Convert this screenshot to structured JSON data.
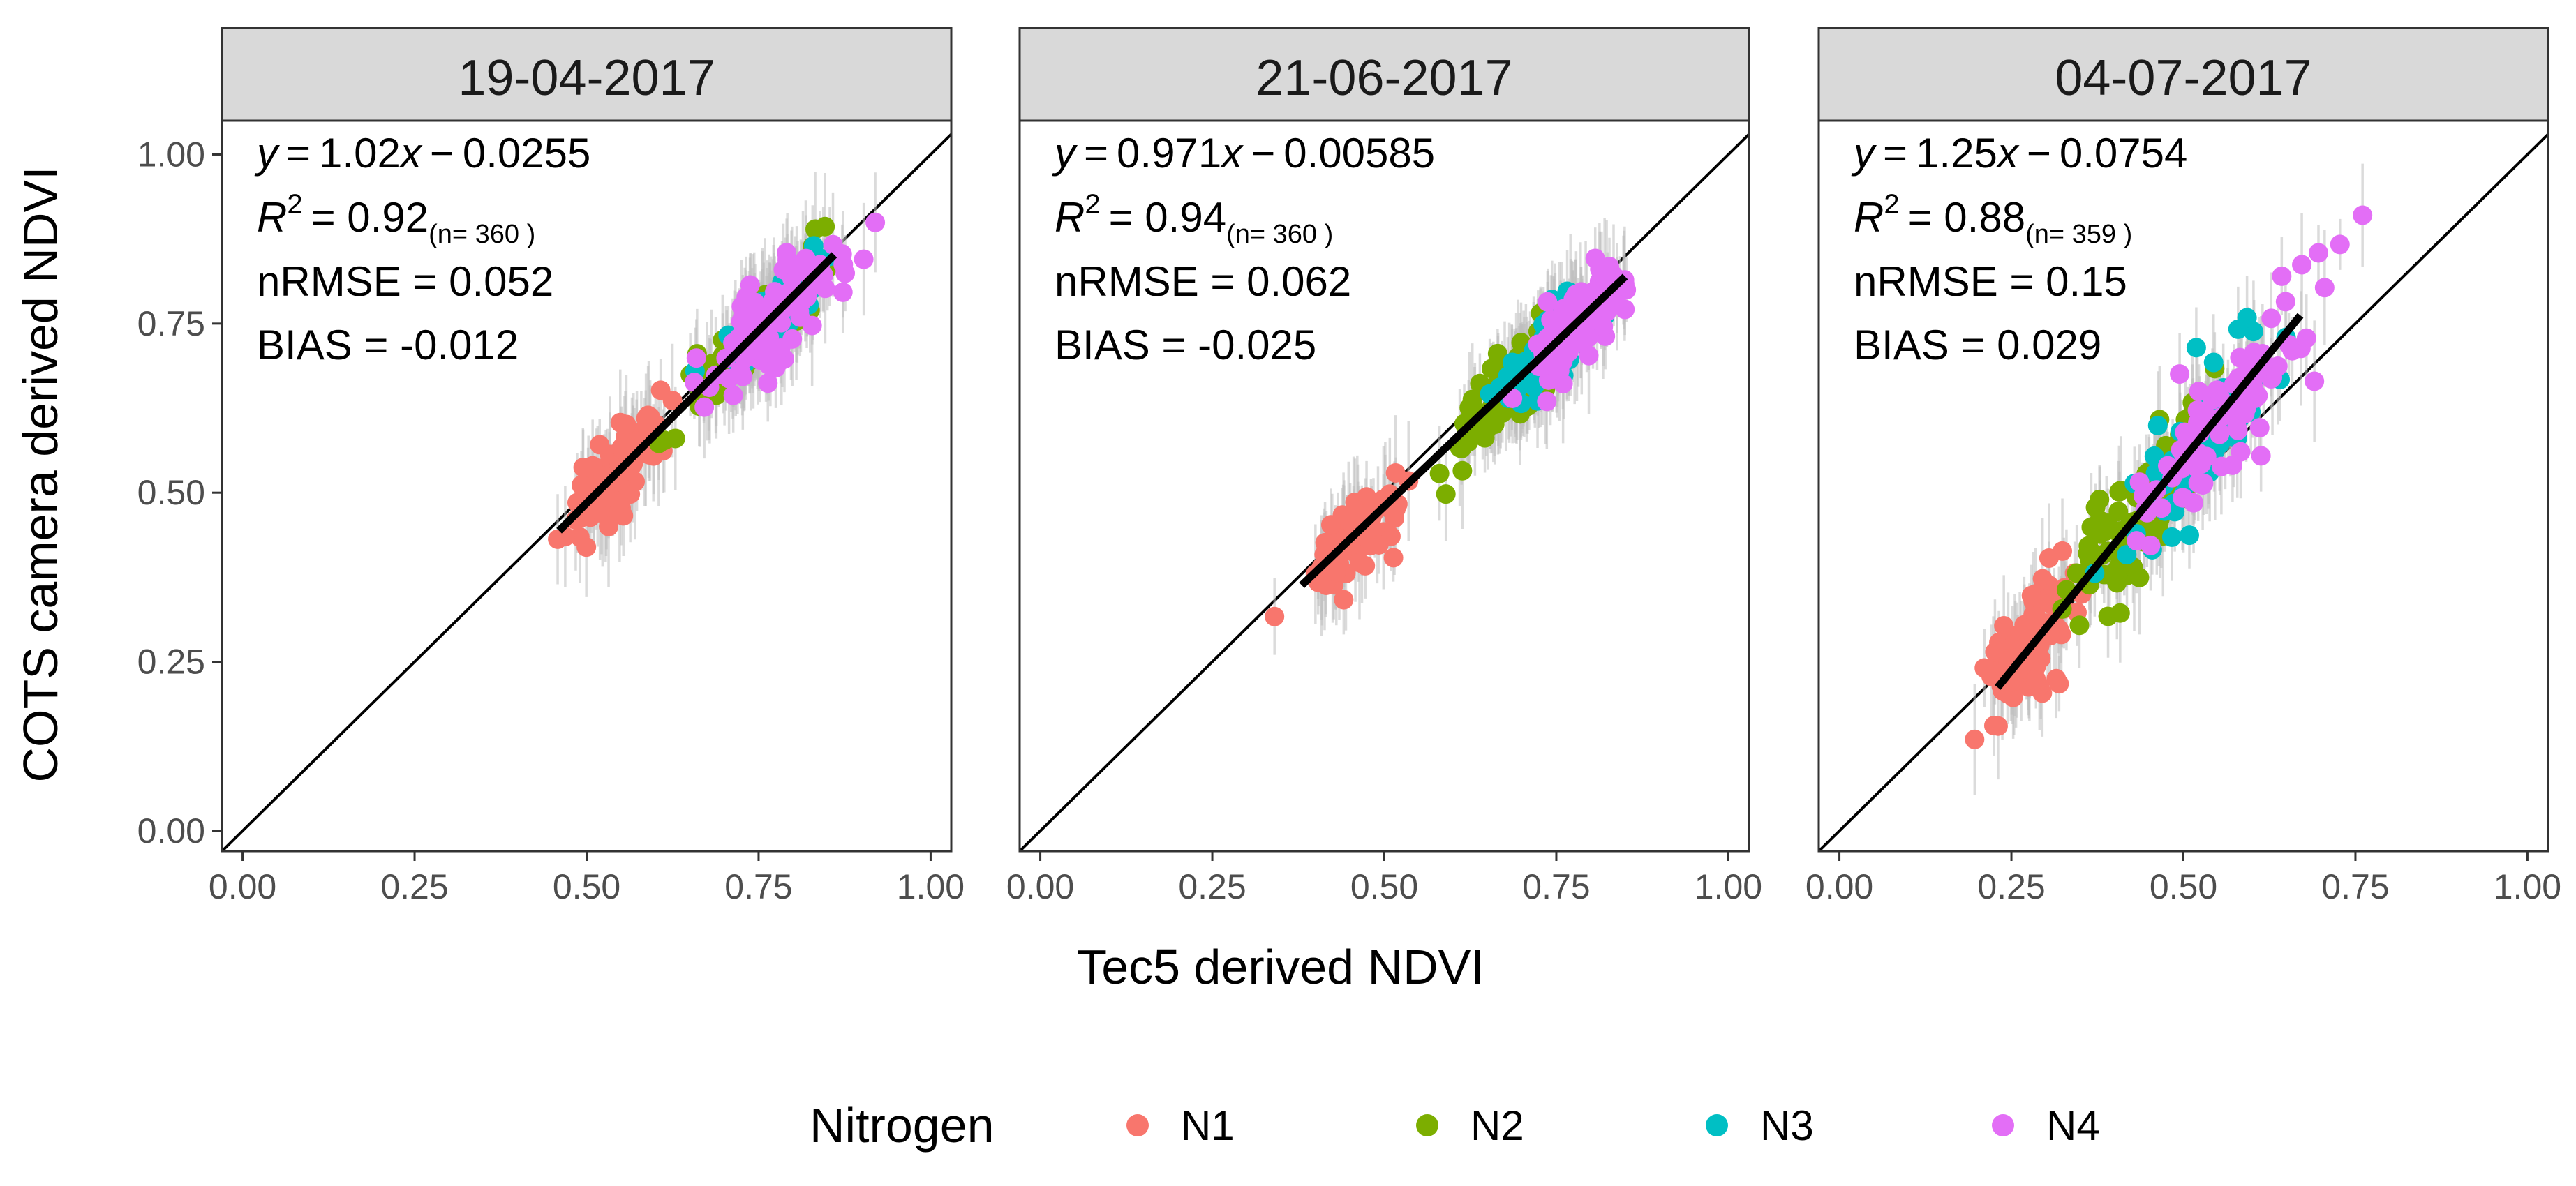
{
  "chart_data": {
    "type": "scatter",
    "xlabel": "Tec5 derived NDVI",
    "ylabel": "COTS camera derived NDVI",
    "xlim": [
      -0.03,
      1.03
    ],
    "ylim": [
      -0.03,
      1.05
    ],
    "x_ticks": [
      0.0,
      0.25,
      0.5,
      0.75,
      1.0
    ],
    "y_ticks": [
      0.0,
      0.25,
      0.5,
      0.75,
      1.0
    ],
    "x_tick_labels": [
      "0.00",
      "0.25",
      "0.50",
      "0.75",
      "1.00"
    ],
    "y_tick_labels": [
      "0.00",
      "0.25",
      "0.50",
      "0.75",
      "1.00"
    ],
    "reference_line": "1:1",
    "legend": {
      "title": "Nitrogen",
      "position": "bottom",
      "entries": [
        {
          "label": "N1",
          "color": "#F8766D"
        },
        {
          "label": "N2",
          "color": "#7CAE00"
        },
        {
          "label": "N3",
          "color": "#00BFC4"
        },
        {
          "label": "N4",
          "color": "#E36EF6"
        }
      ]
    },
    "panels": [
      {
        "title": "19-04-2017",
        "eq": {
          "y": "y",
          "eqsign": "=",
          "slope": "1.02",
          "x": "x",
          "minus": "−",
          "intercept": "0.0255"
        },
        "r2": {
          "r": "R",
          "sup": "2",
          "value": "= 0.92",
          "n": "(n= 360 )"
        },
        "nrmse": "nRMSE = 0.052",
        "bias": "BIAS = -0.012",
        "fit": {
          "slope": 1.02,
          "intercept": -0.0255,
          "x_range": [
            0.46,
            0.86
          ]
        },
        "groups": [
          {
            "label": "N1",
            "x_center": 0.54,
            "x_sd": 0.035,
            "y_sd": 0.03,
            "n": 90
          },
          {
            "label": "N2",
            "x_center": 0.74,
            "x_sd": 0.05,
            "y_sd": 0.025,
            "n": 90
          },
          {
            "label": "N3",
            "x_center": 0.78,
            "x_sd": 0.035,
            "y_sd": 0.022,
            "n": 90
          },
          {
            "label": "N4",
            "x_center": 0.77,
            "x_sd": 0.05,
            "y_sd": 0.035,
            "n": 90
          }
        ]
      },
      {
        "title": "21-06-2017",
        "eq": {
          "y": "y",
          "eqsign": "=",
          "slope": "0.971",
          "x": "x",
          "minus": "−",
          "intercept": "0.00585"
        },
        "r2": {
          "r": "R",
          "sup": "2",
          "value": "= 0.94",
          "n": "(n= 360 )"
        },
        "nrmse": "nRMSE = 0.062",
        "bias": "BIAS = -0.025",
        "fit": {
          "slope": 0.971,
          "intercept": -0.00585,
          "x_range": [
            0.38,
            0.85
          ]
        },
        "groups": [
          {
            "label": "N1",
            "x_center": 0.45,
            "x_sd": 0.04,
            "y_sd": 0.03,
            "n": 90
          },
          {
            "label": "N2",
            "x_center": 0.68,
            "x_sd": 0.04,
            "y_sd": 0.03,
            "n": 90
          },
          {
            "label": "N3",
            "x_center": 0.74,
            "x_sd": 0.04,
            "y_sd": 0.025,
            "n": 90
          },
          {
            "label": "N4",
            "x_center": 0.78,
            "x_sd": 0.035,
            "y_sd": 0.03,
            "n": 90
          }
        ]
      },
      {
        "title": "04-07-2017",
        "eq": {
          "y": "y",
          "eqsign": "=",
          "slope": "1.25",
          "x": "x",
          "minus": "−",
          "intercept": "0.0754"
        },
        "r2": {
          "r": "R",
          "sup": "2",
          "value": "= 0.88",
          "n": "(n= 359 )"
        },
        "nrmse": "nRMSE = 0.15",
        "bias": "BIAS = 0.029",
        "fit": {
          "slope": 1.25,
          "intercept": -0.0754,
          "x_range": [
            0.23,
            0.67
          ]
        },
        "groups": [
          {
            "label": "N1",
            "x_center": 0.28,
            "x_sd": 0.035,
            "y_sd": 0.04,
            "n": 90
          },
          {
            "label": "N2",
            "x_center": 0.43,
            "x_sd": 0.05,
            "y_sd": 0.05,
            "n": 90
          },
          {
            "label": "N3",
            "x_center": 0.52,
            "x_sd": 0.06,
            "y_sd": 0.04,
            "n": 89
          },
          {
            "label": "N4",
            "x_center": 0.55,
            "x_sd": 0.07,
            "y_sd": 0.045,
            "n": 90
          }
        ]
      }
    ]
  }
}
